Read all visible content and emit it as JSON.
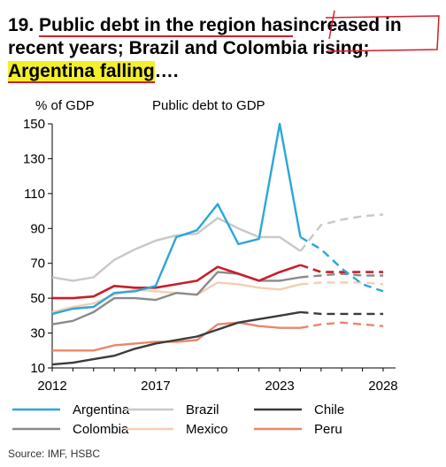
{
  "heading": {
    "number": "19.",
    "part1": "Public debt in the region has",
    "part2": "increased",
    "part3": "in recent years; Brazil and Colombia rising;",
    "part4": "Argentina falling",
    "part5": "…."
  },
  "source": "Source: IMF, HSBC",
  "colors": {
    "argentina": "#2aa7d9",
    "brazil": "#c8c8c8",
    "chile": "#3b3b3b",
    "colombia": "#8a8a8a",
    "mexico": "#f6cdb2",
    "peru": "#e8876a",
    "red": "#c81e2a",
    "highlight": "#f4ef2b",
    "annotation": "#d21f2a"
  },
  "chart_data": {
    "type": "line",
    "title": "Public debt to GDP",
    "ylabel": "% of GDP",
    "xlabel": "",
    "xlim": [
      2012,
      2028.6
    ],
    "ylim": [
      10,
      150
    ],
    "xticks": [
      2012,
      2017,
      2023,
      2028
    ],
    "yticks": [
      10,
      30,
      50,
      70,
      90,
      110,
      130,
      150
    ],
    "grid": false,
    "legend": "bottom",
    "forecast_from": 2024,
    "series": [
      {
        "name": "Argentina",
        "color_key": "argentina",
        "x": [
          2012,
          2013,
          2014,
          2015,
          2016,
          2017,
          2018,
          2019,
          2020,
          2021,
          2022,
          2023,
          2024,
          2025,
          2026,
          2027,
          2028
        ],
        "y": [
          41,
          44,
          45,
          53,
          54,
          57,
          85,
          89,
          104,
          81,
          84,
          150,
          85,
          78,
          67,
          58,
          54
        ]
      },
      {
        "name": "Brazil",
        "color_key": "brazil",
        "x": [
          2012,
          2013,
          2014,
          2015,
          2016,
          2017,
          2018,
          2019,
          2020,
          2021,
          2022,
          2023,
          2024,
          2025,
          2026,
          2027,
          2028
        ],
        "y": [
          62,
          60,
          62,
          72,
          78,
          83,
          86,
          87,
          96,
          90,
          85,
          85,
          77,
          92,
          95,
          97,
          98
        ]
      },
      {
        "name": "Chile",
        "color_key": "chile",
        "x": [
          2012,
          2013,
          2014,
          2015,
          2016,
          2017,
          2018,
          2019,
          2020,
          2021,
          2022,
          2023,
          2024,
          2025,
          2026,
          2027,
          2028
        ],
        "y": [
          12,
          13,
          15,
          17,
          21,
          24,
          26,
          28,
          32,
          36,
          38,
          40,
          42,
          41,
          41,
          41,
          41
        ]
      },
      {
        "name": "Colombia",
        "color_key": "colombia",
        "x": [
          2012,
          2013,
          2014,
          2015,
          2016,
          2017,
          2018,
          2019,
          2020,
          2021,
          2022,
          2023,
          2024,
          2025,
          2026,
          2027,
          2028
        ],
        "y": [
          35,
          37,
          42,
          50,
          50,
          49,
          53,
          52,
          65,
          64,
          60,
          60,
          62,
          63,
          64,
          63,
          63
        ]
      },
      {
        "name": "Mexico",
        "color_key": "mexico",
        "x": [
          2012,
          2013,
          2014,
          2015,
          2016,
          2017,
          2018,
          2019,
          2020,
          2021,
          2022,
          2023,
          2024,
          2025,
          2026,
          2027,
          2028
        ],
        "y": [
          42,
          45,
          47,
          52,
          55,
          54,
          53,
          52,
          59,
          58,
          56,
          55,
          58,
          59,
          59,
          59,
          58
        ]
      },
      {
        "name": "Peru",
        "color_key": "peru",
        "x": [
          2012,
          2013,
          2014,
          2015,
          2016,
          2017,
          2018,
          2019,
          2020,
          2021,
          2022,
          2023,
          2024,
          2025,
          2026,
          2027,
          2028
        ],
        "y": [
          20,
          20,
          20,
          23,
          24,
          25,
          25,
          26,
          35,
          36,
          34,
          33,
          33,
          35,
          36,
          35,
          34
        ]
      },
      {
        "name": "",
        "color_key": "red",
        "x": [
          2012,
          2013,
          2014,
          2015,
          2016,
          2017,
          2018,
          2019,
          2020,
          2021,
          2022,
          2023,
          2024,
          2025,
          2026,
          2027,
          2028
        ],
        "y": [
          50,
          50,
          51,
          57,
          56,
          56,
          58,
          60,
          68,
          64,
          60,
          65,
          69,
          65,
          65,
          65,
          65
        ]
      }
    ]
  }
}
